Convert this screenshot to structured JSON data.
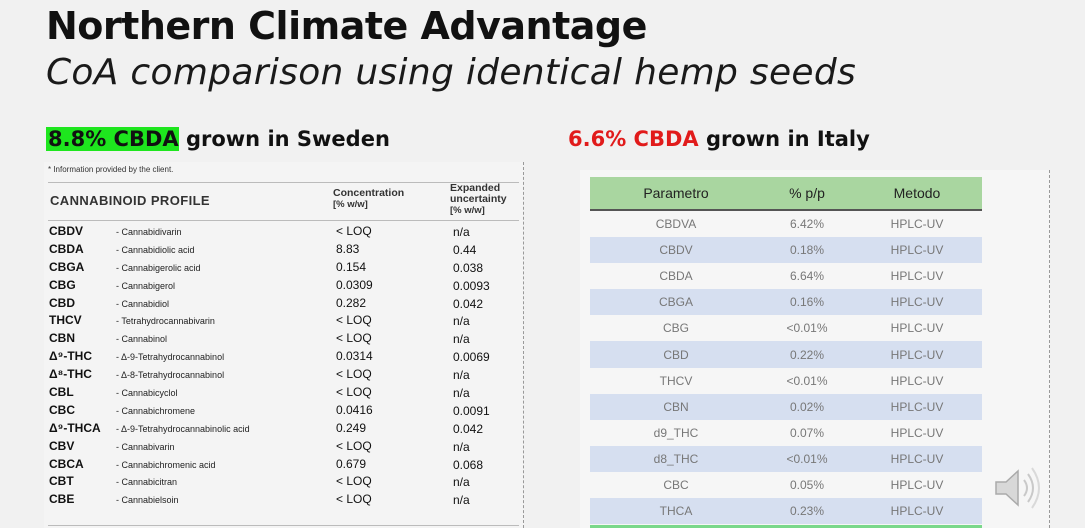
{
  "title": "Northern Climate Advantage",
  "subtitle": "CoA comparison using identical hemp seeds",
  "left": {
    "highlight": "8.8% CBDA",
    "rest": " grown in Sweden",
    "highlight_color": "#1ee61e",
    "doc": {
      "info": "* Information provided by the client.",
      "profile_header": "CANNABINOID PROFILE",
      "conc_header_1": "Concentration",
      "conc_header_2": "[% w/w]",
      "unc_header_1": "Expanded",
      "unc_header_2": "uncertainty",
      "unc_header_3": "[% w/w]",
      "rows": [
        {
          "abbr": "CBDV",
          "name": "- Cannabidivarin",
          "conc": "< LOQ",
          "unc": "n/a"
        },
        {
          "abbr": "CBDA",
          "name": "- Cannabidiolic acid",
          "conc": "8.83",
          "unc": "0.44"
        },
        {
          "abbr": "CBGA",
          "name": "- Cannabigerolic acid",
          "conc": "0.154",
          "unc": "0.038"
        },
        {
          "abbr": "CBG",
          "name": "- Cannabigerol",
          "conc": "0.0309",
          "unc": "0.0093"
        },
        {
          "abbr": "CBD",
          "name": "- Cannabidiol",
          "conc": "0.282",
          "unc": "0.042"
        },
        {
          "abbr": "THCV",
          "name": "- Tetrahydrocannabivarin",
          "conc": "< LOQ",
          "unc": "n/a"
        },
        {
          "abbr": "CBN",
          "name": "- Cannabinol",
          "conc": "< LOQ",
          "unc": "n/a"
        },
        {
          "abbr": "Δ⁹-THC",
          "name": "- Δ-9-Tetrahydrocannabinol",
          "conc": "0.0314",
          "unc": "0.0069"
        },
        {
          "abbr": "Δ⁸-THC",
          "name": "- Δ-8-Tetrahydrocannabinol",
          "conc": "< LOQ",
          "unc": "n/a"
        },
        {
          "abbr": "CBL",
          "name": "- Cannabicyclol",
          "conc": "< LOQ",
          "unc": "n/a"
        },
        {
          "abbr": "CBC",
          "name": "- Cannabichromene",
          "conc": "0.0416",
          "unc": "0.0091"
        },
        {
          "abbr": "Δ⁹-THCA",
          "name": "- Δ-9-Tetrahydrocannabinolic acid",
          "conc": "0.249",
          "unc": "0.042"
        },
        {
          "abbr": "CBV",
          "name": "- Cannabivarin",
          "conc": "< LOQ",
          "unc": "n/a"
        },
        {
          "abbr": "CBCA",
          "name": "- Cannabichromenic acid",
          "conc": "0.679",
          "unc": "0.068"
        },
        {
          "abbr": "CBT",
          "name": "- Cannabicitran",
          "conc": "< LOQ",
          "unc": "n/a"
        },
        {
          "abbr": "CBE",
          "name": "- Cannabielsoin",
          "conc": "< LOQ",
          "unc": "n/a"
        }
      ]
    }
  },
  "right": {
    "highlight": "6.6% CBDA",
    "rest": " grown in Italy",
    "highlight_color": "#e11b1b",
    "table": {
      "headers": [
        "Parametro",
        "% p/p",
        "Metodo"
      ],
      "rows": [
        [
          "CBDVA",
          "6.42%",
          "HPLC-UV"
        ],
        [
          "CBDV",
          "0.18%",
          "HPLC-UV"
        ],
        [
          "CBDA",
          "6.64%",
          "HPLC-UV"
        ],
        [
          "CBGA",
          "0.16%",
          "HPLC-UV"
        ],
        [
          "CBG",
          "<0.01%",
          "HPLC-UV"
        ],
        [
          "CBD",
          "0.22%",
          "HPLC-UV"
        ],
        [
          "THCV",
          "<0.01%",
          "HPLC-UV"
        ],
        [
          "CBN",
          "0.02%",
          "HPLC-UV"
        ],
        [
          "d9_THC",
          "0.07%",
          "HPLC-UV"
        ],
        [
          "d8_THC",
          "<0.01%",
          "HPLC-UV"
        ],
        [
          "CBC",
          "0.05%",
          "HPLC-UV"
        ],
        [
          "THCA",
          "0.23%",
          "HPLC-UV"
        ]
      ]
    }
  },
  "icons": {
    "audio": "speaker-icon"
  }
}
